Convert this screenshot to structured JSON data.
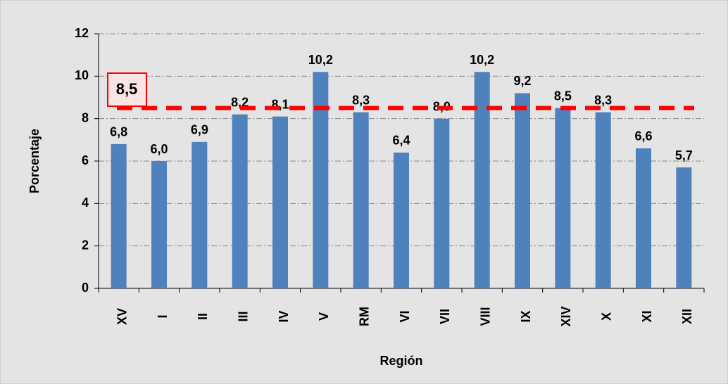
{
  "chart_data": {
    "type": "bar",
    "categories": [
      "XV",
      "I",
      "II",
      "III",
      "IV",
      "V",
      "RM",
      "VI",
      "VII",
      "VIII",
      "IX",
      "XIV",
      "X",
      "XI",
      "XII"
    ],
    "values": [
      6.8,
      6.0,
      6.9,
      8.2,
      8.1,
      10.2,
      8.3,
      6.4,
      8.0,
      10.2,
      9.2,
      8.5,
      8.3,
      6.6,
      5.7
    ],
    "value_labels": [
      "6,8",
      "6,0",
      "6,9",
      "8,2",
      "8,1",
      "10,2",
      "8,3",
      "6,4",
      "8,0",
      "10,2",
      "9,2",
      "8,5",
      "8,3",
      "6,6",
      "5,7"
    ],
    "color": "#4f81bd",
    "ylim": [
      0,
      12
    ],
    "yticks": [
      0,
      2,
      4,
      6,
      8,
      10,
      12
    ],
    "grid": true,
    "y_label": "Porcentaje",
    "x_label": "Región",
    "reference": {
      "value": 8.5,
      "label": "8,5",
      "color": "#ff0000"
    }
  }
}
